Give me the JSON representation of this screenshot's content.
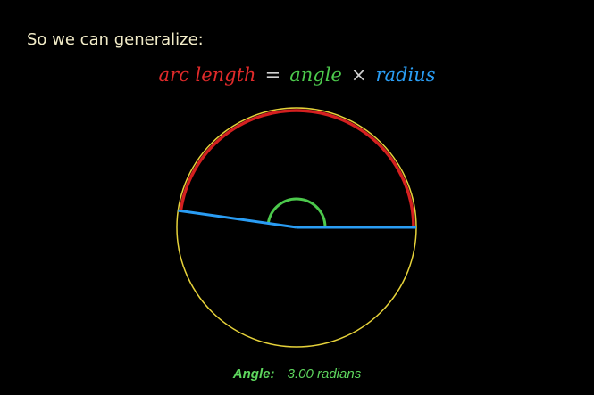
{
  "intro_text": "So we can generalize:",
  "formula": {
    "arc_term": "arc length",
    "equals": "=",
    "angle_term": "angle",
    "times": "×",
    "radius_term": "radius"
  },
  "readout": {
    "label": "Angle:",
    "value": "3.00 radians"
  },
  "diagram": {
    "angle_radians": 3.0,
    "colors": {
      "circle": "#e6d23a",
      "arc": "#d42020",
      "angle_mark": "#4cc94c",
      "radius": "#2a9df4",
      "formula_arc": "#e02a2a",
      "formula_angle": "#4cc94c",
      "formula_radius": "#2a9df4",
      "intro_text": "#f2ecc8"
    }
  }
}
